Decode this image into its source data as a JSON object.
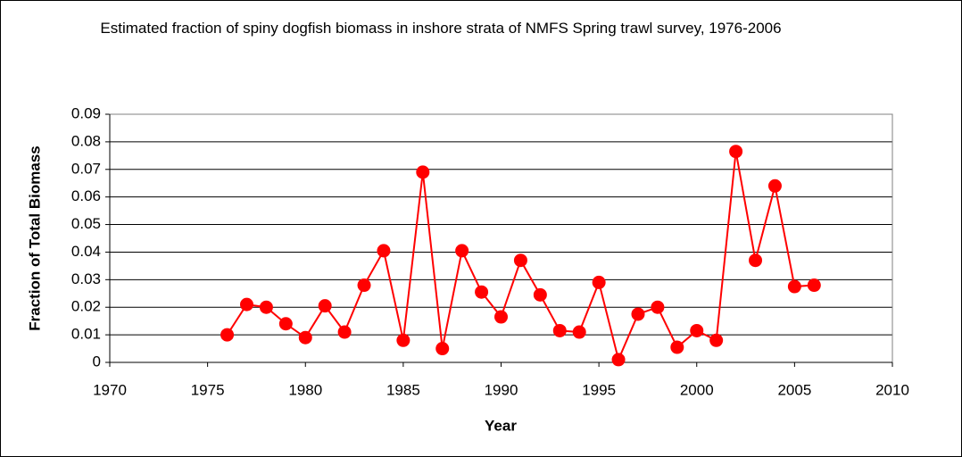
{
  "chart_data": {
    "type": "line",
    "title": "Estimated fraction of spiny dogfish biomass in inshore strata of NMFS Spring trawl survey, 1976-2006",
    "x_label": "Year",
    "y_label": "Fraction of Total Biomass",
    "x": [
      1976,
      1977,
      1978,
      1979,
      1980,
      1981,
      1982,
      1983,
      1984,
      1985,
      1986,
      1987,
      1988,
      1989,
      1990,
      1991,
      1992,
      1993,
      1994,
      1995,
      1996,
      1997,
      1998,
      1999,
      2000,
      2001,
      2002,
      2003,
      2004,
      2005,
      2006
    ],
    "series": [
      {
        "name": "Fraction of Total Biomass",
        "color": "#ff0000",
        "values": [
          0.01,
          0.021,
          0.02,
          0.014,
          0.009,
          0.0205,
          0.011,
          0.028,
          0.0405,
          0.008,
          0.069,
          0.005,
          0.0405,
          0.0255,
          0.0165,
          0.037,
          0.0245,
          0.0115,
          0.011,
          0.029,
          0.001,
          0.0175,
          0.02,
          0.0055,
          0.0115,
          0.008,
          0.0765,
          0.037,
          0.064,
          0.0275,
          0.028
        ]
      }
    ],
    "xlim": [
      1970,
      2010
    ],
    "xticks": [
      1970,
      1975,
      1980,
      1985,
      1990,
      1995,
      2000,
      2005,
      2010
    ],
    "ylim": [
      0,
      0.09
    ],
    "yticks": [
      0,
      0.01,
      0.02,
      0.03,
      0.04,
      0.05,
      0.06,
      0.07,
      0.08,
      0.09
    ],
    "grid": true
  }
}
